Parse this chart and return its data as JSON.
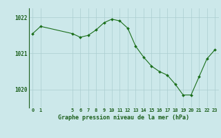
{
  "x": [
    0,
    1,
    5,
    6,
    7,
    8,
    9,
    10,
    11,
    12,
    13,
    14,
    15,
    16,
    17,
    18,
    19,
    20,
    21,
    22,
    23
  ],
  "y": [
    1021.55,
    1021.75,
    1021.55,
    1021.45,
    1021.5,
    1021.65,
    1021.85,
    1021.95,
    1021.9,
    1021.7,
    1021.2,
    1020.9,
    1020.65,
    1020.5,
    1020.4,
    1020.15,
    1019.85,
    1019.85,
    1020.35,
    1020.85,
    1021.1
  ],
  "yticks": [
    1020,
    1021,
    1022
  ],
  "xticks": [
    0,
    1,
    5,
    6,
    7,
    8,
    9,
    10,
    11,
    12,
    13,
    14,
    15,
    16,
    17,
    18,
    19,
    20,
    21,
    22,
    23
  ],
  "xlabel": "Graphe pression niveau de la mer (hPa)",
  "line_color": "#1a6e1a",
  "marker_color": "#1a6e1a",
  "bg_color": "#cce8ea",
  "grid_color": "#aacdd0",
  "axis_color": "#1a5e1a",
  "label_color": "#1a5e1a",
  "ylim": [
    1019.5,
    1022.25
  ],
  "xlim": [
    -0.5,
    23.5
  ],
  "figwidth": 3.2,
  "figheight": 2.0,
  "dpi": 100
}
